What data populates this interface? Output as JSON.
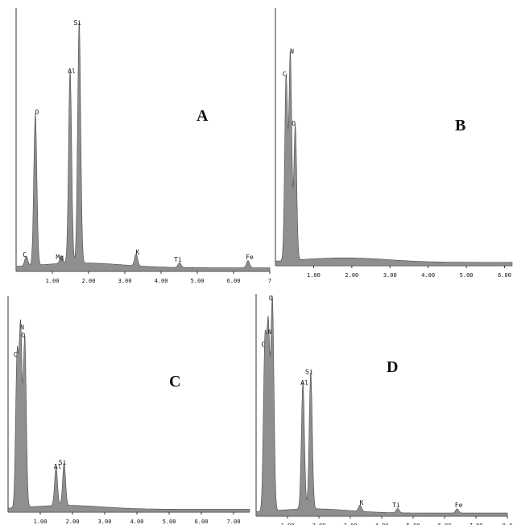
{
  "chart_data": [
    {
      "type": "area",
      "panel_label": "A",
      "x_ticks": [
        "1.00",
        "2.00",
        "3.00",
        "4.00",
        "5.00",
        "6.00",
        "7"
      ],
      "xlim": [
        0,
        7
      ],
      "peaks": [
        {
          "label": "C",
          "x": 0.28,
          "y": 0.04
        },
        {
          "label": "O",
          "x": 0.53,
          "y": 0.63
        },
        {
          "label": "Mg",
          "x": 1.25,
          "y": 0.03
        },
        {
          "label": "Al",
          "x": 1.49,
          "y": 0.8
        },
        {
          "label": "Si",
          "x": 1.74,
          "y": 1.0
        },
        {
          "label": "K",
          "x": 3.31,
          "y": 0.05
        },
        {
          "label": "Ti",
          "x": 4.51,
          "y": 0.02
        },
        {
          "label": "Fe",
          "x": 6.4,
          "y": 0.03
        }
      ]
    },
    {
      "type": "area",
      "panel_label": "B",
      "x_ticks": [
        "1.00",
        "2.00",
        "3.00",
        "4.00",
        "5.00",
        "6.00"
      ],
      "xlim": [
        0,
        6.2
      ],
      "peaks": [
        {
          "label": "C",
          "x": 0.28,
          "y": 0.82
        },
        {
          "label": "N",
          "x": 0.39,
          "y": 0.92
        },
        {
          "label": "O",
          "x": 0.52,
          "y": 0.6
        }
      ]
    },
    {
      "type": "area",
      "panel_label": "C",
      "x_ticks": [
        "1.00",
        "2.00",
        "3.00",
        "4.00",
        "5.00",
        "6.00",
        "7.00"
      ],
      "xlim": [
        0,
        7.5
      ],
      "peaks": [
        {
          "label": "C",
          "x": 0.28,
          "y": 0.78
        },
        {
          "label": "N",
          "x": 0.39,
          "y": 0.92
        },
        {
          "label": "O",
          "x": 0.52,
          "y": 0.88
        },
        {
          "label": "Al",
          "x": 1.49,
          "y": 0.2
        },
        {
          "label": "Si",
          "x": 1.74,
          "y": 0.22
        }
      ]
    },
    {
      "type": "area",
      "panel_label": "D",
      "x_ticks": [
        "1.00",
        "2.00",
        "3.00",
        "4.00",
        "5.00",
        "6.00",
        "7.00",
        "8.0"
      ],
      "xlim": [
        0,
        8
      ],
      "peaks": [
        {
          "label": "C",
          "x": 0.28,
          "y": 0.78
        },
        {
          "label": "N",
          "x": 0.39,
          "y": 0.84
        },
        {
          "label": "O",
          "x": 0.52,
          "y": 1.0
        },
        {
          "label": "Al",
          "x": 1.49,
          "y": 0.6
        },
        {
          "label": "Si",
          "x": 1.74,
          "y": 0.65
        },
        {
          "label": "K",
          "x": 3.31,
          "y": 0.03
        },
        {
          "label": "Ti",
          "x": 4.51,
          "y": 0.02
        },
        {
          "label": "Fe",
          "x": 6.4,
          "y": 0.02
        }
      ]
    }
  ],
  "colors": {
    "fill": "#8f8f8f",
    "stroke": "#4a4a4a",
    "axis": "#333333",
    "text": "#111111",
    "background": "#ffffff"
  }
}
